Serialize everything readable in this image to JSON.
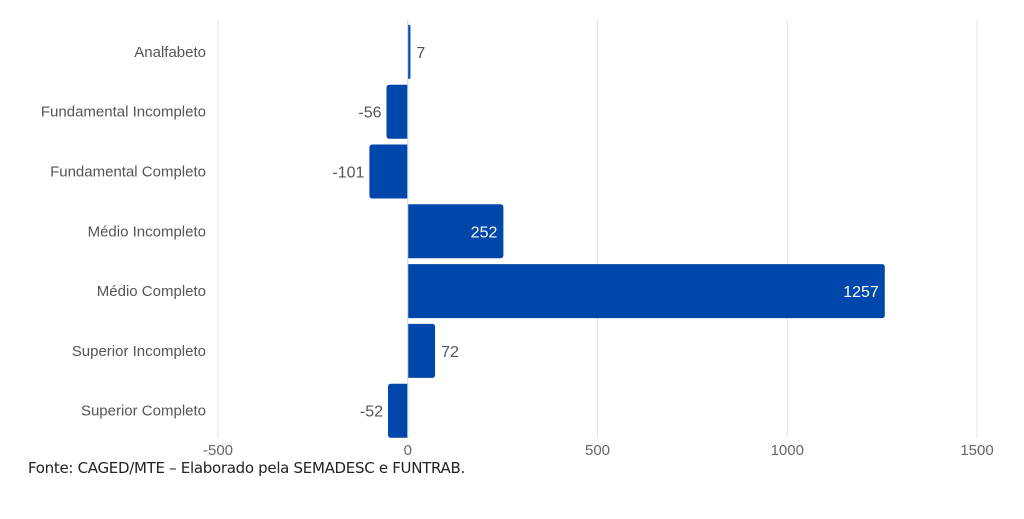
{
  "chart_data": {
    "type": "bar",
    "orientation": "horizontal",
    "categories": [
      "Analfabeto",
      "Fundamental Incompleto",
      "Fundamental Completo",
      "Médio Incompleto",
      "Médio Completo",
      "Superior Incompleto",
      "Superior Completo"
    ],
    "values": [
      7,
      -56,
      -101,
      252,
      1257,
      72,
      -52
    ],
    "data_labels": [
      "7",
      "-56",
      "-101",
      "252",
      "1257",
      "72",
      "-52"
    ],
    "xlim": [
      -500,
      1500
    ],
    "xticks": [
      -500,
      0,
      500,
      1000,
      1500
    ],
    "xtick_labels": [
      "-500",
      "0",
      "500",
      "1000",
      "1500"
    ],
    "grid": "vertical",
    "bar_color": "#0047AB",
    "title": "",
    "xlabel": "",
    "ylabel": ""
  },
  "source": "Fonte: CAGED/MTE – Elaborado pela SEMADESC e FUNTRAB."
}
